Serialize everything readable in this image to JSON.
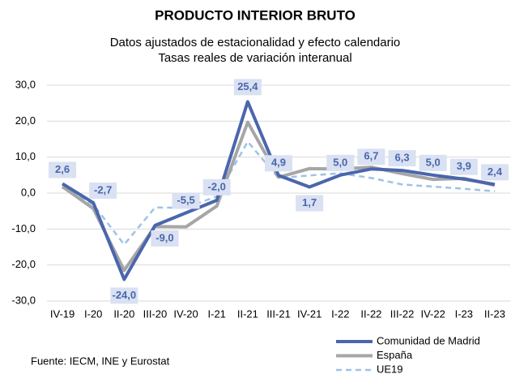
{
  "chart_data": {
    "type": "line",
    "title": "PRODUCTO INTERIOR BRUTO",
    "subtitle": [
      "Datos ajustados de estacionalidad y efecto calendario",
      "Tasas reales de variación interanual"
    ],
    "categories": [
      "IV-19",
      "I-20",
      "II-20",
      "III-20",
      "IV-20",
      "I-21",
      "II-21",
      "III-21",
      "IV-21",
      "I-22",
      "II-22",
      "III-22",
      "IV-22",
      "I-23",
      "II-23"
    ],
    "series": [
      {
        "name": "Comunidad de Madrid",
        "color": "#4a66ad",
        "values": [
          2.6,
          -2.7,
          -24.0,
          -9.0,
          -5.5,
          -2.0,
          25.4,
          4.9,
          1.7,
          5.0,
          6.7,
          6.3,
          5.0,
          3.9,
          2.4
        ],
        "value_labels": [
          "2,6",
          "-2,7",
          "-24,0",
          "-9,0",
          "-5,5",
          "-2,0",
          "25,4",
          "4,9",
          "1,7",
          "5,0",
          "6,7",
          "6,3",
          "5,0",
          "3,9",
          "2,4"
        ]
      },
      {
        "name": "España",
        "color": "#a6a6a6",
        "values": [
          1.8,
          -4.3,
          -21.5,
          -9.3,
          -9.4,
          -3.6,
          19.7,
          4.4,
          6.8,
          6.7,
          7.2,
          5.4,
          3.8,
          4.1,
          2.2
        ]
      },
      {
        "name": "UE19",
        "color": "#9dc3e6",
        "dashed": true,
        "values": [
          1.5,
          -3.2,
          -14.3,
          -4.0,
          -4.1,
          -0.9,
          14.3,
          4.2,
          4.9,
          5.5,
          4.2,
          2.4,
          1.8,
          1.2,
          0.5
        ]
      }
    ],
    "ylim": [
      -30,
      30
    ],
    "yticks": [
      {
        "value": -30,
        "label": "-30,0"
      },
      {
        "value": -20,
        "label": "-20,0"
      },
      {
        "value": -10,
        "label": "-10,0"
      },
      {
        "value": 0,
        "label": "0,0"
      },
      {
        "value": 10,
        "label": "10,0"
      },
      {
        "value": 20,
        "label": "20,0"
      },
      {
        "value": 30,
        "label": "30,0"
      }
    ],
    "grid": true,
    "legend": "bottom-right",
    "source": "Fuente: IECM, INE y Eurostat"
  }
}
